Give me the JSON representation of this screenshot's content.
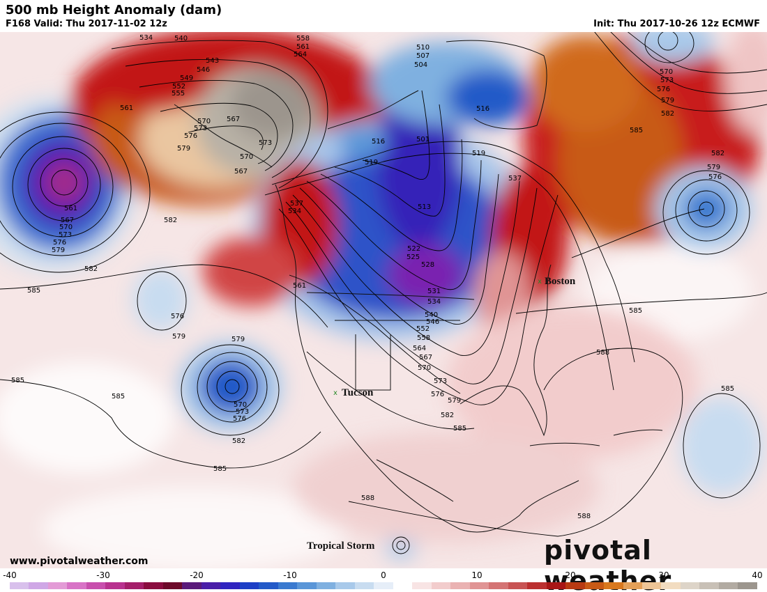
{
  "header": {
    "title": "500 mb Height Anomaly (dam)",
    "valid": "F168 Valid: Thu 2017-11-02 12z",
    "init": "Init: Thu 2017-10-26 12z ECMWF"
  },
  "footer": {
    "website": "www.pivotalweather.com",
    "brand": "pivotal weather"
  },
  "annotations": {
    "boston": "Boston",
    "tucson": "Tucson",
    "tropical_storm": "Tropical Storm"
  },
  "colorbar": {
    "labels": [
      "-40",
      "-30",
      "-20",
      "-10",
      "0",
      "10",
      "20",
      "30",
      "40"
    ],
    "colors": [
      "#d8c0ec",
      "#cfa7e6",
      "#e39bd6",
      "#d873c6",
      "#c84fad",
      "#b8328f",
      "#a41f6a",
      "#8a0d3f",
      "#6d0a2a",
      "#5a1a7a",
      "#4a1ea8",
      "#3024c0",
      "#1d3fc6",
      "#235ac8",
      "#3a7ad0",
      "#5a96d8",
      "#7fb0e0",
      "#a8c9ea",
      "#c8dcf0",
      "#e6eef8",
      "#ffffff",
      "#f8e4e4",
      "#f2cccc",
      "#eab2b2",
      "#e09494",
      "#d47474",
      "#c85454",
      "#bb3030",
      "#a81616",
      "#b83a12",
      "#c85a16",
      "#d8781e",
      "#e4a058",
      "#eec596",
      "#f2dcc0",
      "#ddd4c8",
      "#c8c0b6",
      "#b2aba2",
      "#9c968e"
    ]
  },
  "contour_labels": [
    "534",
    "540",
    "543",
    "546",
    "549",
    "552",
    "555",
    "558",
    "561",
    "564",
    "567",
    "570",
    "573",
    "576",
    "579",
    "582",
    "585",
    "588",
    "504",
    "507",
    "510",
    "501",
    "513",
    "516",
    "519",
    "522",
    "525",
    "528",
    "531",
    "537"
  ],
  "legend_colors": {
    "positive": "#c0141a",
    "negative": "#2a40c8",
    "strong_negative": "#7a2bb5",
    "positive_extreme": "#a9a196"
  }
}
